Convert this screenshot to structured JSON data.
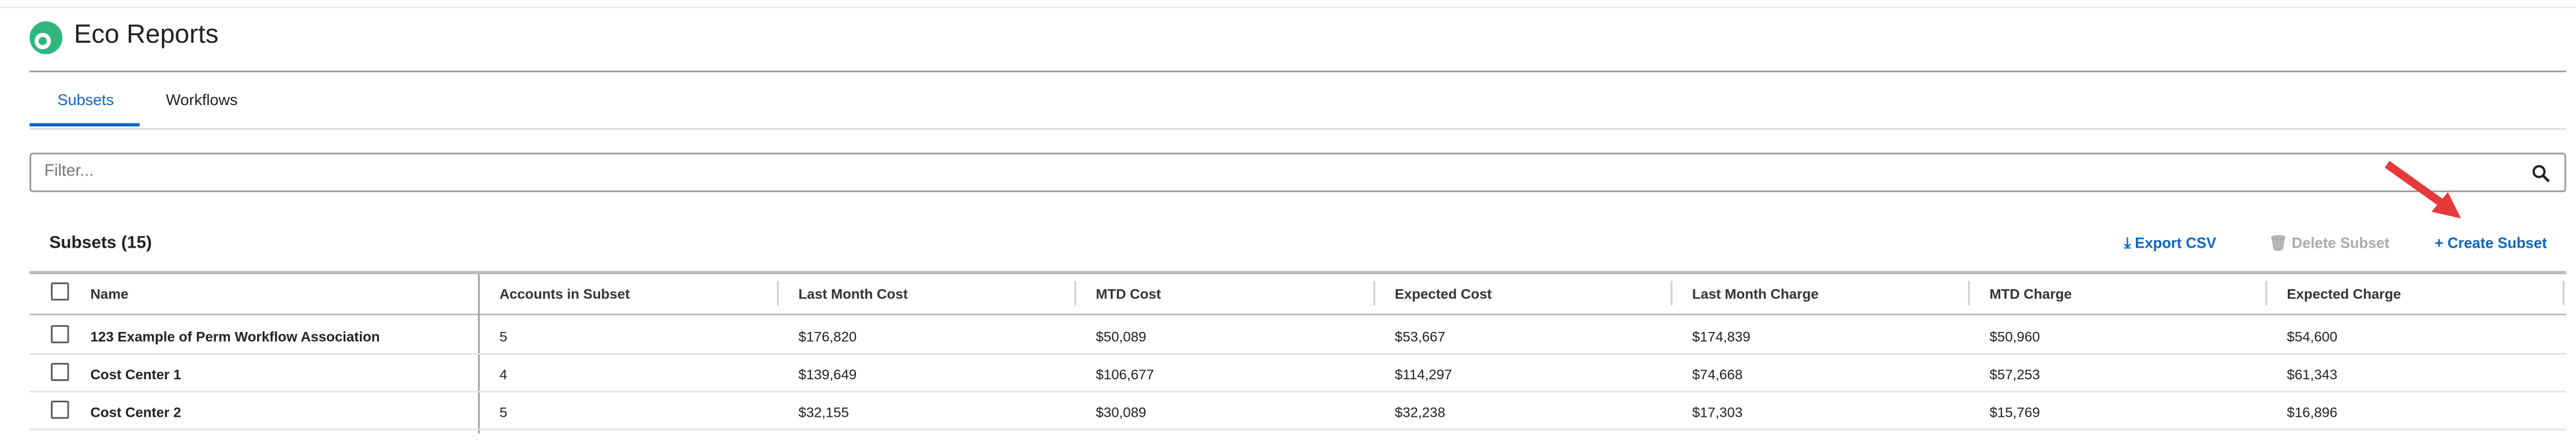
{
  "header": {
    "title": "Eco Reports"
  },
  "tabs": [
    "Subsets",
    "Workflows"
  ],
  "filter": {
    "placeholder": "Filter..."
  },
  "table": {
    "title": "Subsets (15)",
    "actions": [
      "Export CSV",
      "Delete Subset",
      "Create Subset"
    ],
    "columns": [
      "Name",
      "Accounts in Subset",
      "Last Month Cost",
      "MTD Cost",
      "Expected Cost",
      "Last Month Charge",
      "MTD Charge",
      "Expected Charge"
    ],
    "rows": [
      [
        "123 Example of Perm Workflow Association",
        "5",
        "$176,820",
        "$50,089",
        "$53,667",
        "$174,839",
        "$50,960",
        "$54,600"
      ],
      [
        "Cost Center 1",
        "4",
        "$139,649",
        "$106,677",
        "$114,297",
        "$74,668",
        "$57,253",
        "$61,343"
      ],
      [
        "Cost Center 2",
        "5",
        "$32,155",
        "$30,089",
        "$32,238",
        "$17,303",
        "$15,769",
        "$16,896"
      ]
    ]
  }
}
